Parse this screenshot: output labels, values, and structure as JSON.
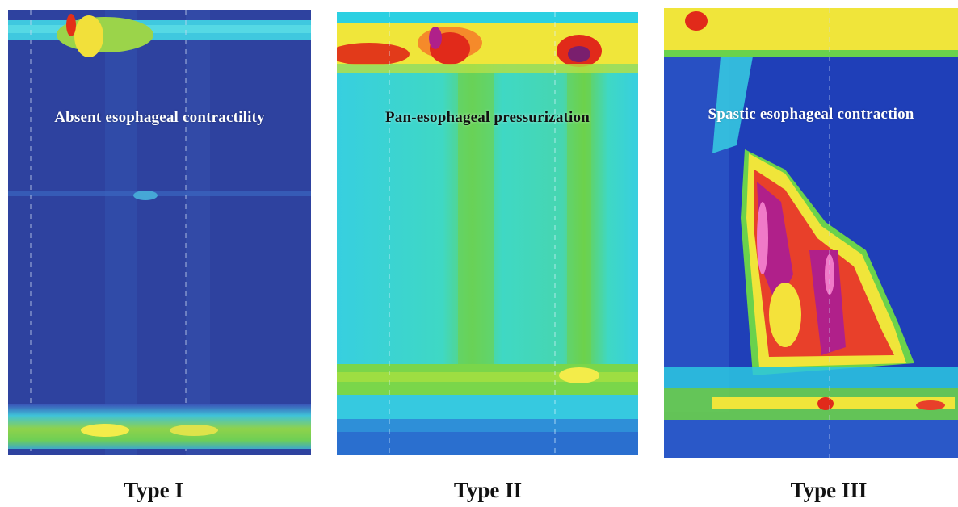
{
  "panels": [
    {
      "caption": "Absent esophageal contractility",
      "type_label": "Type I"
    },
    {
      "caption": "Pan-esophageal pressurization",
      "type_label": "Type II"
    },
    {
      "caption": "Spastic esophageal contraction",
      "type_label": "Type III"
    }
  ],
  "colors": {
    "deep_blue": "#2b3f9c",
    "mid_blue": "#3a56b8",
    "cyan": "#2ed2e0",
    "green": "#5fd04a",
    "yellow": "#f5ea3a",
    "red": "#e12a1a",
    "magenta": "#b0208a"
  }
}
